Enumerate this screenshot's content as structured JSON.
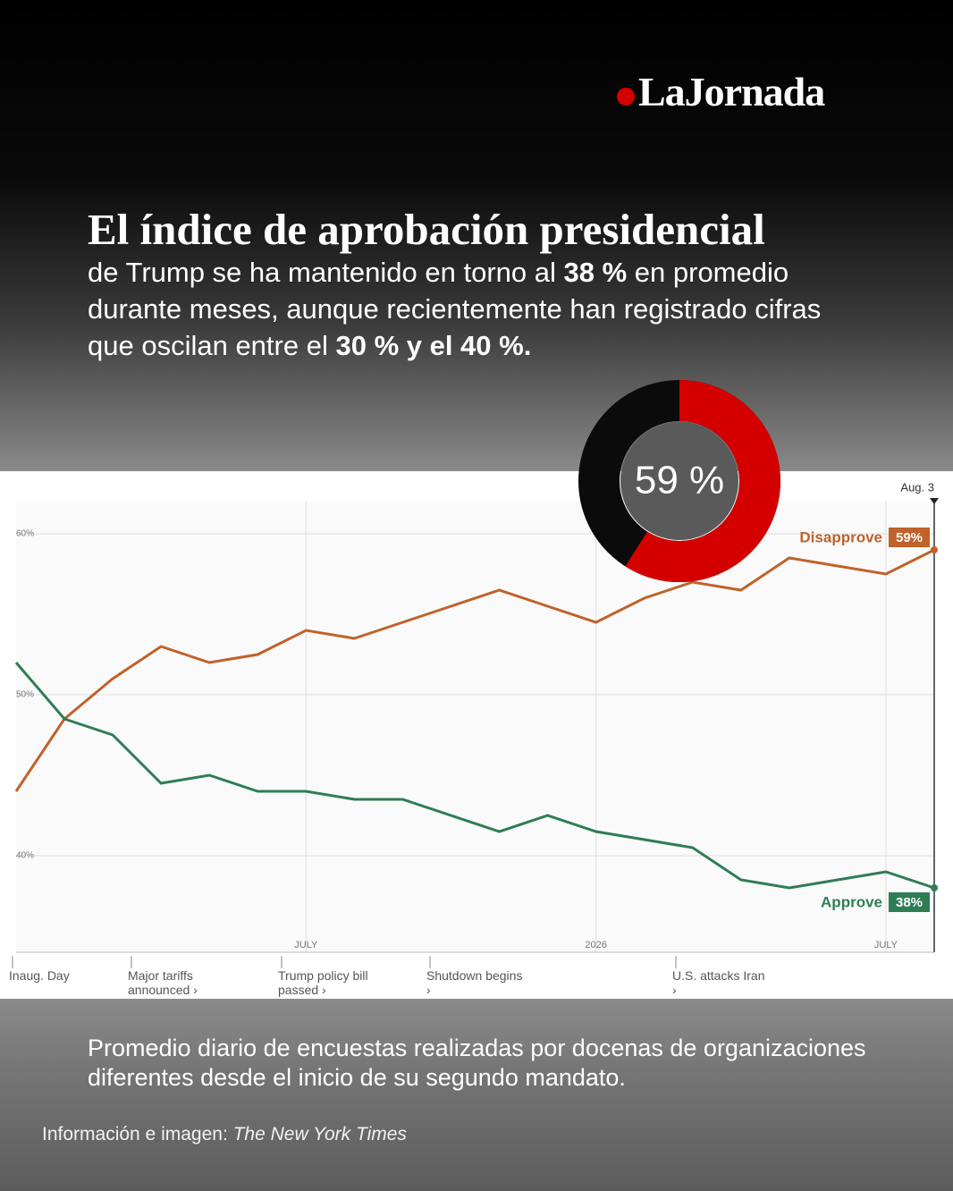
{
  "header": {
    "logo": "LaJornada"
  },
  "title": "El índice de aprobación presidencial",
  "subtitle": [
    {
      "text": "de Trump se ha mantenido en torno al "
    },
    {
      "text": "38 %",
      "bold": true
    },
    {
      "text": " en promedio durante meses, aunque recientemente han registrado cifras que oscilan entre el "
    },
    {
      "text": "30 % y el 40 %.",
      "bold": true
    }
  ],
  "footer": "Promedio diario de encuestas realizadas por docenas de organizaciones diferentes desde el inicio de su segundo mandato.",
  "source": {
    "prefix": "Información e imagen: ",
    "name": "The New York Times"
  },
  "chart_data": [
    {
      "type": "line",
      "categories": [
        null,
        null,
        null,
        null,
        null,
        null,
        "JULY",
        null,
        null,
        null,
        null,
        null,
        "2026",
        null,
        null,
        null,
        null,
        null,
        "JULY",
        "Aug. 3"
      ],
      "series": [
        {
          "name": "Disapprove",
          "color": "#c0622a",
          "values": [
            44,
            48.5,
            51,
            53,
            52,
            52.5,
            54,
            53.5,
            54.5,
            55.5,
            56.5,
            55.5,
            54.5,
            56,
            57,
            56.5,
            58.5,
            58,
            57.5,
            59
          ],
          "value_labels": [
            null,
            null,
            null,
            null,
            null,
            null,
            null,
            null,
            null,
            null,
            null,
            null,
            null,
            null,
            null,
            null,
            null,
            null,
            null,
            "59%"
          ]
        },
        {
          "name": "Approve",
          "color": "#2e7d55",
          "values": [
            52,
            48.5,
            47.5,
            44.5,
            45,
            44,
            44,
            43.5,
            43.5,
            42.5,
            41.5,
            42.5,
            41.5,
            41,
            40.5,
            38.5,
            38,
            38.5,
            39,
            38
          ],
          "value_labels": [
            null,
            null,
            null,
            null,
            null,
            null,
            null,
            null,
            null,
            null,
            null,
            null,
            null,
            null,
            null,
            null,
            null,
            null,
            null,
            "38%"
          ]
        }
      ],
      "ylim": [
        34,
        62
      ],
      "yticks": [
        {
          "value": 60,
          "label": "60%"
        },
        {
          "value": 50,
          "label": "50%"
        },
        {
          "value": 40,
          "label": "40%"
        }
      ],
      "grid": true,
      "annotations": [
        "Inaug. Day",
        "Major tariffs announced ›",
        "Trump policy bill passed ›",
        "Shutdown begins ›",
        "U.S. attacks Iran ›"
      ]
    },
    {
      "type": "donut",
      "values": [
        59
      ],
      "value_labels": [
        "59 %"
      ],
      "color": "#d40000",
      "track": "#0b0b0b"
    }
  ]
}
